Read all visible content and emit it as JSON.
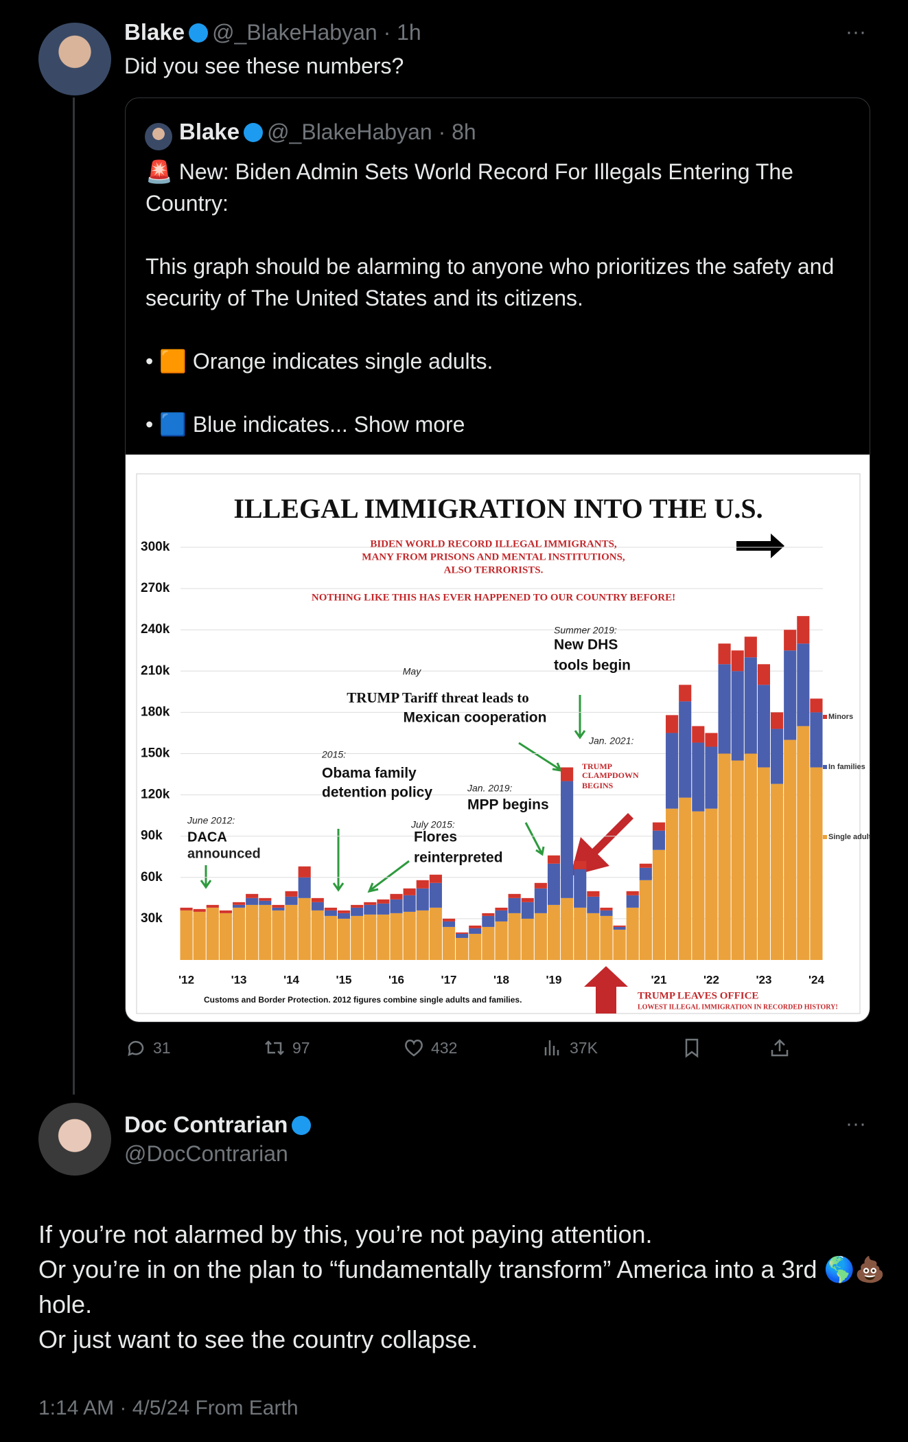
{
  "tweet": {
    "name": "Blake",
    "handle": "@_BlakeHabyan",
    "time": "1h",
    "text": "Did you see these numbers?"
  },
  "quote": {
    "name": "Blake",
    "handle": "@_BlakeHabyan",
    "time": "8h",
    "paragraphs": [
      "🚨 New: Biden Admin Sets World Record For Illegals Entering The Country:",
      "This graph should be alarming to anyone who prioritizes the safety and security of The United States and its citizens.",
      "• 🟧 Orange indicates single adults.",
      "• 🟦 Blue indicates..."
    ],
    "show_more": "Show more",
    "chart_data": {
      "type": "bar",
      "stacked": true,
      "title": "ILLEGAL IMMIGRATION INTO THE U.S.",
      "categories": [
        "'12",
        null,
        null,
        null,
        "'13",
        null,
        null,
        null,
        "'14",
        null,
        null,
        null,
        "'15",
        null,
        null,
        null,
        "'16",
        null,
        null,
        null,
        "'17",
        null,
        null,
        null,
        "'18",
        null,
        null,
        null,
        "'19",
        null,
        null,
        null,
        null,
        null,
        null,
        null,
        "'21",
        null,
        null,
        null,
        "'22",
        null,
        null,
        null,
        "'23",
        null,
        null,
        null,
        "'24"
      ],
      "series": [
        {
          "name": "Single adults",
          "color": "#eba23c",
          "values": [
            36,
            35,
            38,
            34,
            38,
            40,
            40,
            36,
            40,
            45,
            36,
            32,
            30,
            32,
            33,
            33,
            34,
            35,
            36,
            38,
            24,
            16,
            19,
            24,
            28,
            34,
            30,
            34,
            40,
            45,
            38,
            34,
            32,
            22,
            38,
            58,
            80,
            110,
            118,
            108,
            110,
            150,
            145,
            150,
            140,
            128,
            160,
            170,
            140
          ]
        },
        {
          "name": "In families",
          "color": "#4a5fae",
          "values": [
            0,
            0,
            0,
            0,
            2,
            5,
            3,
            2,
            6,
            15,
            6,
            4,
            4,
            6,
            7,
            8,
            10,
            12,
            16,
            18,
            4,
            3,
            4,
            8,
            8,
            11,
            12,
            18,
            30,
            85,
            28,
            12,
            4,
            2,
            9,
            9,
            14,
            55,
            70,
            50,
            45,
            65,
            65,
            70,
            60,
            40,
            65,
            60,
            40
          ]
        },
        {
          "name": "Minors",
          "color": "#d2352c",
          "values": [
            2,
            2,
            2,
            2,
            2,
            3,
            2,
            2,
            4,
            8,
            3,
            2,
            2,
            2,
            2,
            3,
            4,
            5,
            6,
            6,
            2,
            1,
            2,
            2,
            2,
            3,
            3,
            4,
            6,
            10,
            6,
            4,
            2,
            1,
            3,
            3,
            6,
            13,
            12,
            12,
            10,
            15,
            15,
            15,
            15,
            12,
            15,
            20,
            10
          ]
        }
      ],
      "ylim": [
        0,
        300
      ],
      "yticks": [
        {
          "value": 30,
          "label": "30k"
        },
        {
          "value": 60,
          "label": "60k"
        },
        {
          "value": 90,
          "label": "90k"
        },
        {
          "value": 120,
          "label": "120k"
        },
        {
          "value": 150,
          "label": "150k"
        },
        {
          "value": 180,
          "label": "180k"
        },
        {
          "value": 210,
          "label": "210k"
        },
        {
          "value": 240,
          "label": "240k"
        },
        {
          "value": 270,
          "label": "270k"
        },
        {
          "value": 300,
          "label": "300k"
        }
      ],
      "grid": true,
      "annotations": [
        "BIDEN WORLD RECORD ILLEGAL IMMIGRANTS,",
        "MANY FROM PRISONS AND MENTAL INSTITUTIONS,",
        "ALSO TERRORISTS.",
        "NOTHING LIKE THIS HAS EVER HAPPENED TO OUR COUNTRY BEFORE!",
        "June 2012:",
        "DACA",
        "announced",
        "2015:",
        "Obama family",
        "detention policy",
        "July 2015:",
        "Flores",
        "reinterpreted",
        "May",
        "TRUMP Tariff threat leads to",
        "Mexican cooperation",
        "Jan. 2019:",
        "MPP begins",
        "Summer 2019:",
        "New DHS",
        "tools begin",
        "Jan. 2021:",
        "TRUMP",
        "CLAMPDOWN",
        "BEGINS",
        "TRUMP LEAVES OFFICE",
        "LOWEST ILLEGAL IMMIGRATION IN RECORDED HISTORY!"
      ],
      "source": "Customs and Border Protection. 2012 figures combine single adults and families."
    }
  },
  "actions": {
    "replies": "31",
    "reposts": "97",
    "likes": "432",
    "views": "37K"
  },
  "reply": {
    "name": "Doc Contrarian",
    "handle": "@DocContrarian",
    "paragraphs": [
      "If you’re not alarmed by this, you’re not paying attention.",
      "Or you’re in on the plan to “fundamentally transform” America into a 3rd 🌎💩hole.",
      "Or just want to see the country collapse."
    ],
    "timestamp": "1:14 AM · 4/5/24 From Earth"
  }
}
